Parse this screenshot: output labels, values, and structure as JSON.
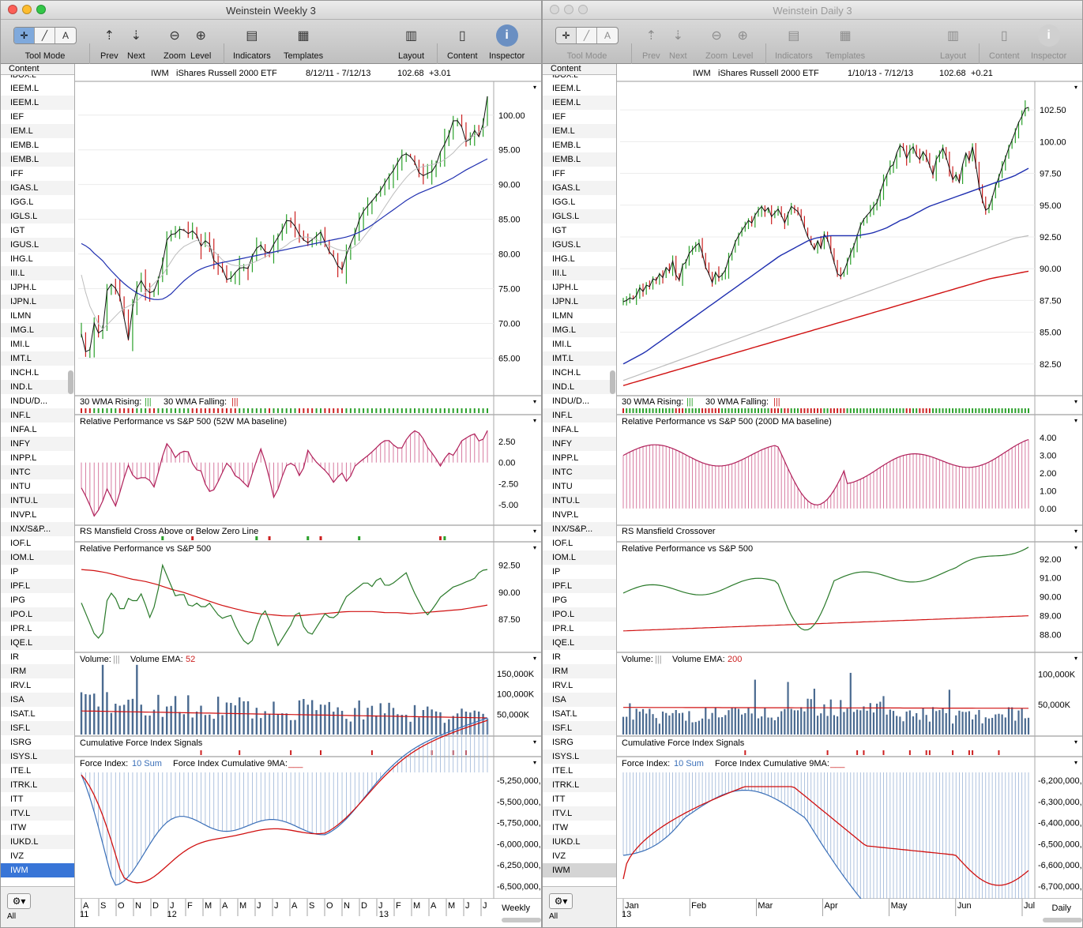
{
  "left_window": {
    "title": "Weinstein Weekly 3",
    "active": true,
    "chart_header": {
      "symbol": "IWM",
      "name": "iShares Russell 2000 ETF",
      "range": "8/12/11 - 7/12/13",
      "price": "102.68",
      "change": "+3.01"
    },
    "period_label": "Weekly"
  },
  "right_window": {
    "title": "Weinstein Daily 3",
    "active": false,
    "chart_header": {
      "symbol": "IWM",
      "name": "iShares Russell 2000 ETF",
      "range": "1/10/13 - 7/12/13",
      "price": "102.68",
      "change": "+0.21"
    },
    "period_label": "Daily"
  },
  "toolbar": {
    "tool_mode": "Tool Mode",
    "prev": "Prev",
    "next": "Next",
    "zoom": "Zoom",
    "level": "Level",
    "indicators": "Indicators",
    "templates": "Templates",
    "layout": "Layout",
    "content": "Content",
    "inspector": "Inspector"
  },
  "sidebar": {
    "header": "Content",
    "footer_all": "All",
    "partial_top": "IDOX.L",
    "items": [
      "IEEM.L",
      "IEEM.L",
      "IEF",
      "IEM.L",
      "IEMB.L",
      "IEMB.L",
      "IFF",
      "IGAS.L",
      "IGG.L",
      "IGLS.L",
      "IGT",
      "IGUS.L",
      "IHG.L",
      "III.L",
      "IJPH.L",
      "IJPN.L",
      "ILMN",
      "IMG.L",
      "IMI.L",
      "IMT.L",
      "INCH.L",
      "IND.L",
      "INDU/D...",
      "INF.L",
      "INFA.L",
      "INFY",
      "INPP.L",
      "INTC",
      "INTU",
      "INTU.L",
      "INVP.L",
      "INX/S&P...",
      "IOF.L",
      "IOM.L",
      "IP",
      "IPF.L",
      "IPG",
      "IPO.L",
      "IPR.L",
      "IQE.L",
      "IR",
      "IRM",
      "IRV.L",
      "ISA",
      "ISAT.L",
      "ISF.L",
      "ISRG",
      "ISYS.L",
      "ITE.L",
      "ITRK.L",
      "ITT",
      "ITV.L",
      "ITW",
      "IUKD.L",
      "IVZ",
      "IWM"
    ]
  },
  "panel_titles": {
    "left": {
      "wma": "30 WMA Rising:",
      "wma_rising_mark": "|||",
      "wma_falling": "30 WMA Falling:",
      "wma_falling_mark": "|||",
      "rp1": "Relative Performance vs S&P 500 (52W MA baseline)",
      "rsm": "RS Mansfield Cross Above or Below Zero Line",
      "rp2": "Relative Performance vs S&P 500",
      "vol": "Volume:",
      "vol_mark": "|||",
      "vol_ema": "Volume EMA:",
      "vol_ema_len": "52",
      "cfi": "Cumulative Force Index Signals",
      "fi": "Force Index:",
      "fi_sum": "10 Sum",
      "fi_ma": "Force Index Cumulative 9MA:",
      "fi_ma_mark": "___"
    },
    "right": {
      "wma": "30 WMA Rising:",
      "wma_rising_mark": "|||",
      "wma_falling": "30 WMA Falling:",
      "wma_falling_mark": "|||",
      "rp1": "Relative Performance vs S&P 500 (200D MA baseline)",
      "rsm": "RS Mansfield Crossover",
      "rp2": "Relative Performance vs S&P 500",
      "vol": "Volume:",
      "vol_mark": "|||",
      "vol_ema": "Volume EMA:",
      "vol_ema_len": "200",
      "cfi": "Cumulative Force Index Signals",
      "fi": "Force Index:",
      "fi_sum": "10 Sum",
      "fi_ma": "Force Index Cumulative 9MA:",
      "fi_ma_mark": "___"
    }
  },
  "colors": {
    "up": "#2aa02a",
    "down": "#cc2020",
    "ma_blue": "#1f2fb0",
    "ma_gray": "#bdbdbd",
    "ma_red": "#d01010",
    "rp_magenta": "#b0205a",
    "rp_green": "#2a7a2a",
    "fi_blue": "#3a6fb8",
    "vol_bar": "#4a6a90"
  },
  "chart_data": [
    {
      "type": "line",
      "name": "left-weekly",
      "price_ticks": [
        "100.00",
        "95.00",
        "90.00",
        "85.00",
        "80.00",
        "75.00",
        "70.00",
        "65.00"
      ],
      "price_ylim": [
        60.5,
        103.5
      ],
      "price": [
        68.5,
        64.5,
        70.5,
        67.2,
        76,
        75.3,
        73.4,
        67.2,
        74.4,
        76.2,
        74.3,
        74.7,
        77.6,
        82.8,
        82.8,
        83.8,
        82.9,
        83.5,
        81.1,
        82.4,
        78.7,
        78.4,
        75.9,
        77.2,
        78.2,
        77.8,
        80.6,
        81.3,
        79.7,
        81.6,
        83.1,
        85.2,
        84.2,
        82.3,
        81.6,
        82.3,
        83.2,
        80.6,
        79.5,
        77.2,
        80.5,
        82.6,
        85.7,
        86.9,
        88,
        89.2,
        90.9,
        92.2,
        94.1,
        94.5,
        93.4,
        91.1,
        91.6,
        92,
        94.9,
        96.5,
        99.6,
        98.8,
        95.5,
        97.9,
        96.5,
        102.7
      ],
      "ma30": [
        81.5,
        81,
        80,
        79.2,
        78,
        77,
        76,
        75.2,
        74.5,
        74,
        73.6,
        73.4,
        73.5,
        74,
        75,
        76,
        76.8,
        77.5,
        78,
        78.3,
        78.6,
        78.8,
        79,
        79.2,
        79.4,
        79.6,
        79.8,
        80,
        80.2,
        80.4,
        80.6,
        80.8,
        81,
        81.2,
        81.4,
        81.6,
        81.8,
        82,
        82.2,
        82.4,
        82.7,
        83.1,
        83.6,
        84.2,
        84.9,
        85.6,
        86.3,
        87,
        87.7,
        88.3,
        88.8,
        89.2,
        89.6,
        90,
        90.5,
        91,
        91.6,
        92.2,
        92.7,
        93.2,
        93.7
      ],
      "ma10": [
        77,
        73,
        71,
        69,
        70,
        71,
        72,
        72.5,
        73,
        74,
        75,
        76,
        77,
        78.5,
        80,
        81,
        81.5,
        82,
        81.5,
        81,
        80,
        79,
        78.5,
        78.3,
        78.3,
        78.6,
        79,
        79.5,
        80,
        80.5,
        81,
        81.8,
        82.3,
        82.5,
        82.3,
        82,
        81.5,
        81,
        80.6,
        80.4,
        80.8,
        81.5,
        82.8,
        84,
        85.5,
        87,
        88.5,
        89.8,
        91,
        92,
        92.5,
        92.7,
        92.9,
        93.2,
        93.8,
        94.6,
        95.7,
        96.5,
        97,
        97.8,
        98.5
      ],
      "rp1": [
        -3,
        -4.5,
        -6.5,
        -5,
        -2.8,
        -5.5,
        -3,
        -0.2,
        -2,
        -1.8,
        -1.8,
        -3,
        0.3,
        2.6,
        0.5,
        1.3,
        1.4,
        -0.8,
        -1,
        -3.5,
        -3.2,
        -1.5,
        0.2,
        -1.5,
        -2,
        -3,
        -0.5,
        1.7,
        -1,
        -4.5,
        -2,
        0,
        -0.2,
        -2,
        1.5,
        0.3,
        -0.5,
        -1.2,
        -2.5,
        -1,
        -2.5,
        -0.5,
        0.2,
        0.8,
        1.5,
        2.3,
        2.8,
        2,
        1.5,
        3,
        3.8,
        3.4,
        1.8,
        0.8,
        -0.5,
        1.2,
        0.8,
        2.5,
        3,
        3.5,
        2.2,
        3.8
      ],
      "rp1_ticks": [
        "2.50",
        "0.00",
        "-2.50",
        "-5.00"
      ],
      "rp2": [
        89,
        87.5,
        86,
        85.5,
        90.2,
        89.5,
        88,
        89.5,
        89,
        90,
        87.5,
        89,
        92.5,
        91,
        89.5,
        90,
        88.5,
        89,
        88.5,
        89,
        88,
        87.5,
        88,
        86.5,
        85.5,
        85,
        87,
        88.5,
        87,
        85,
        86,
        87,
        88.5,
        86.5,
        86,
        87,
        88,
        87.5,
        88,
        89.5,
        90,
        90.5,
        91,
        90.5,
        91.5,
        90.5,
        90.8,
        91.3,
        91.8,
        90.2,
        89,
        87.8,
        88.5,
        89.5,
        90,
        90.5,
        90.7,
        91,
        91.2,
        92,
        92.1
      ],
      "rp2_ma": [
        92.1,
        92,
        91.8,
        91.5,
        91.2,
        91,
        90.7,
        90.3,
        90,
        89.6,
        89.2,
        88.8,
        88.5,
        88.2,
        88,
        87.9,
        87.8,
        87.8,
        87.9,
        88,
        88.1,
        88.2,
        88.2,
        88.2,
        88.1,
        88.1,
        88,
        88.1,
        88.2,
        88.3,
        88.4,
        88.6,
        88.8
      ],
      "rp2_ticks": [
        "92.50",
        "90.00",
        "87.50"
      ],
      "vol_ticks": [
        "150,000K",
        "100,000K",
        "50,000K"
      ],
      "fi_ticks": [
        "-5,250,000,",
        "-5,500,000,",
        "-5,750,000,",
        "-6,000,000,",
        "-6,250,000,",
        "-6,500,000,"
      ],
      "x_months": [
        "A",
        "S",
        "O",
        "N",
        "D",
        "J",
        "F",
        "M",
        "A",
        "M",
        "J",
        "J",
        "A",
        "S",
        "O",
        "N",
        "D",
        "J",
        "F",
        "M",
        "A",
        "M",
        "J",
        "J"
      ],
      "x_years": [
        "11",
        "12",
        "13"
      ]
    },
    {
      "type": "line",
      "name": "right-daily",
      "price_ticks": [
        "102.50",
        "100.00",
        "97.50",
        "95.00",
        "92.50",
        "90.00",
        "87.50",
        "85.00",
        "82.50"
      ],
      "price_ylim": [
        80.5,
        104
      ],
      "price": [
        87.4,
        87.5,
        87.7,
        87.6,
        87.9,
        88.5,
        88.2,
        88.7,
        88.6,
        89.2,
        89.1,
        89.6,
        89.3,
        90.1,
        89.8,
        90.6,
        89.5,
        89.1,
        90.3,
        90.5,
        91.2,
        91.5,
        91.8,
        92,
        91.2,
        90.1,
        89.6,
        88.9,
        89.7,
        89.3,
        89.5,
        89.9,
        90.8,
        91.3,
        92.1,
        92.6,
        93,
        93.4,
        93.8,
        93.6,
        94.2,
        94.6,
        94.9,
        94.5,
        94.8,
        94.1,
        94.4,
        94.7,
        94.2,
        93.6,
        94.3,
        94.9,
        94.7,
        94.5,
        94,
        93.2,
        92.5,
        92,
        91.5,
        92.2,
        91.6,
        92.7,
        92.3,
        91.4,
        90.5,
        89.6,
        89.4,
        89.8,
        90.5,
        91.2,
        91.8,
        92.6,
        93.4,
        93.9,
        94.2,
        94.5,
        94.9,
        95.2,
        96,
        96.8,
        97.4,
        98,
        98.2,
        99.1,
        99.7,
        99.5,
        98.7,
        99.3,
        99.6,
        98.9,
        98.6,
        99.2,
        98.8,
        98.1,
        97.4,
        98.6,
        99,
        99.5,
        98.8,
        97.9,
        97,
        97.4,
        96.8,
        98.2,
        99.1,
        98.5,
        99.6,
        98.2,
        96.5,
        95.4,
        94.6,
        94.8,
        95.6,
        96.5,
        97.2,
        98,
        98.7,
        99.5,
        100.1,
        100.8,
        101.5,
        102,
        102.6,
        102.7
      ],
      "ma_blue": [
        82.5,
        82.8,
        83.1,
        83.4,
        83.8,
        84.2,
        84.6,
        85,
        85.4,
        85.8,
        86.2,
        86.6,
        87,
        87.4,
        87.8,
        88.2,
        88.6,
        89,
        89.4,
        89.8,
        90.2,
        90.6,
        91,
        91.3,
        91.6,
        91.9,
        92.2,
        92.4,
        92.5,
        92.6,
        92.6,
        92.6,
        92.6,
        92.6,
        92.7,
        92.8,
        93,
        93.2,
        93.5,
        93.8,
        94,
        94.3,
        94.6,
        94.9,
        95.1,
        95.3,
        95.5,
        95.7,
        95.9,
        96.1,
        96.3,
        96.5,
        96.7,
        96.9,
        97.1,
        97.3,
        97.6,
        97.9
      ],
      "ma_gray": [
        81.2,
        81.6,
        82,
        82.4,
        82.8,
        83.2,
        83.6,
        84,
        84.4,
        84.8,
        85.2,
        85.6,
        86,
        86.4,
        86.8,
        87.2,
        87.6,
        88,
        88.4,
        88.8,
        89.2,
        89.6,
        90,
        90.4,
        90.8,
        91.2,
        91.6,
        92,
        92.4,
        92.6
      ],
      "ma_red": [
        80.8,
        81.1,
        81.4,
        81.7,
        82,
        82.3,
        82.6,
        82.9,
        83.2,
        83.5,
        83.8,
        84.1,
        84.4,
        84.7,
        85,
        85.3,
        85.6,
        85.9,
        86.2,
        86.5,
        86.8,
        87.1,
        87.4,
        87.7,
        88,
        88.3,
        88.6,
        88.9,
        89.2,
        89.4,
        89.6,
        89.8
      ],
      "rp1_ticks": [
        "4.00",
        "3.00",
        "2.00",
        "1.00",
        "0.00"
      ],
      "rp2_ticks": [
        "92.00",
        "91.00",
        "90.00",
        "89.00",
        "88.00"
      ],
      "vol_ticks": [
        "100,000K",
        "50,000K"
      ],
      "fi_ticks": [
        "-6,200,000,",
        "-6,300,000,",
        "-6,400,000,",
        "-6,500,000,",
        "-6,600,000,",
        "-6,700,000,"
      ],
      "x_months": [
        "Jan",
        "Feb",
        "Mar",
        "Apr",
        "May",
        "Jun",
        "Jul"
      ],
      "x_years": [
        "13"
      ]
    }
  ]
}
